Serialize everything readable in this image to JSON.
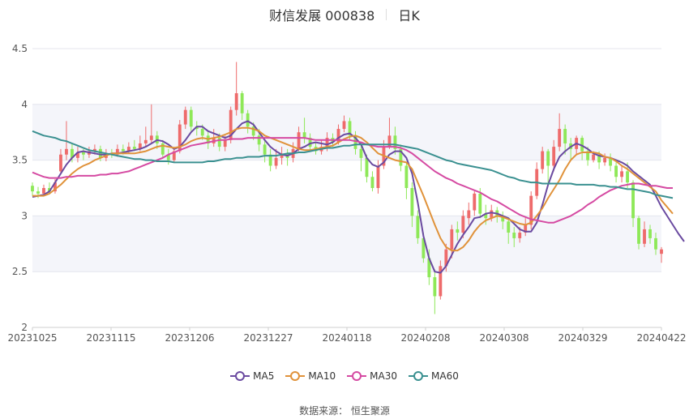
{
  "header": {
    "title": "财信发展 000838",
    "period": "日K"
  },
  "source": "数据来源：  恒生聚源",
  "legend": [
    {
      "name": "MA5",
      "color": "#6a4aa0"
    },
    {
      "name": "MA10",
      "color": "#e0923a"
    },
    {
      "name": "MA30",
      "color": "#d54aa2"
    },
    {
      "name": "MA60",
      "color": "#3a9090"
    }
  ],
  "colors": {
    "up": "#ee6b6b",
    "down": "#8ee858"
  },
  "chart_data": {
    "type": "candlestick",
    "ylim": [
      2,
      4.5
    ],
    "yticks": [
      "2",
      "2.5",
      "3",
      "3.5",
      "4",
      "4.5"
    ],
    "xtick_labels": [
      "20231025",
      "20231115",
      "20231206",
      "20231227",
      "20240118",
      "20240208",
      "20240308",
      "20240329",
      "20240422"
    ],
    "candles": [
      [
        3.27,
        3.22,
        3.3,
        3.18
      ],
      [
        3.22,
        3.2,
        3.26,
        3.16
      ],
      [
        3.2,
        3.25,
        3.28,
        3.18
      ],
      [
        3.25,
        3.22,
        3.3,
        3.2
      ],
      [
        3.22,
        3.3,
        3.33,
        3.2
      ],
      [
        3.4,
        3.55,
        3.6,
        3.38
      ],
      [
        3.55,
        3.6,
        3.85,
        3.5
      ],
      [
        3.6,
        3.52,
        3.65,
        3.48
      ],
      [
        3.52,
        3.57,
        3.62,
        3.48
      ],
      [
        3.57,
        3.55,
        3.6,
        3.5
      ],
      [
        3.55,
        3.58,
        3.62,
        3.52
      ],
      [
        3.58,
        3.6,
        3.64,
        3.55
      ],
      [
        3.6,
        3.52,
        3.63,
        3.49
      ],
      [
        3.52,
        3.56,
        3.6,
        3.49
      ],
      [
        3.56,
        3.55,
        3.6,
        3.52
      ],
      [
        3.55,
        3.6,
        3.64,
        3.53
      ],
      [
        3.6,
        3.58,
        3.64,
        3.55
      ],
      [
        3.58,
        3.62,
        3.66,
        3.56
      ],
      [
        3.62,
        3.6,
        3.68,
        3.58
      ],
      [
        3.6,
        3.65,
        3.72,
        3.58
      ],
      [
        3.65,
        3.68,
        3.8,
        3.62
      ],
      [
        3.68,
        3.72,
        4.0,
        3.65
      ],
      [
        3.72,
        3.65,
        3.76,
        3.6
      ],
      [
        3.65,
        3.55,
        3.68,
        3.52
      ],
      [
        3.55,
        3.5,
        3.6,
        3.46
      ],
      [
        3.5,
        3.58,
        3.62,
        3.48
      ],
      [
        3.58,
        3.82,
        3.86,
        3.56
      ],
      [
        3.82,
        3.95,
        3.98,
        3.78
      ],
      [
        3.95,
        3.8,
        3.98,
        3.76
      ],
      [
        3.8,
        3.78,
        3.85,
        3.72
      ],
      [
        3.78,
        3.72,
        3.82,
        3.68
      ],
      [
        3.72,
        3.65,
        3.76,
        3.6
      ],
      [
        3.65,
        3.7,
        3.78,
        3.62
      ],
      [
        3.7,
        3.62,
        3.74,
        3.58
      ],
      [
        3.62,
        3.68,
        3.72,
        3.58
      ],
      [
        3.68,
        3.95,
        3.98,
        3.65
      ],
      [
        3.95,
        4.1,
        4.38,
        3.9
      ],
      [
        4.1,
        3.92,
        4.12,
        3.86
      ],
      [
        3.92,
        3.8,
        3.95,
        3.74
      ],
      [
        3.8,
        3.72,
        3.84,
        3.68
      ],
      [
        3.72,
        3.64,
        3.78,
        3.58
      ],
      [
        3.64,
        3.55,
        3.68,
        3.48
      ],
      [
        3.55,
        3.45,
        3.6,
        3.4
      ],
      [
        3.45,
        3.52,
        3.6,
        3.42
      ],
      [
        3.52,
        3.56,
        3.62,
        3.46
      ],
      [
        3.56,
        3.52,
        3.6,
        3.45
      ],
      [
        3.52,
        3.6,
        3.66,
        3.48
      ],
      [
        3.6,
        3.75,
        3.8,
        3.58
      ],
      [
        3.75,
        3.7,
        3.88,
        3.65
      ],
      [
        3.7,
        3.62,
        3.74,
        3.58
      ],
      [
        3.62,
        3.58,
        3.66,
        3.55
      ],
      [
        3.58,
        3.62,
        3.68,
        3.55
      ],
      [
        3.62,
        3.7,
        3.75,
        3.58
      ],
      [
        3.7,
        3.66,
        3.74,
        3.62
      ],
      [
        3.66,
        3.78,
        3.82,
        3.64
      ],
      [
        3.78,
        3.85,
        3.9,
        3.75
      ],
      [
        3.85,
        3.72,
        3.88,
        3.68
      ],
      [
        3.72,
        3.6,
        3.76,
        3.55
      ],
      [
        3.6,
        3.52,
        3.64,
        3.4
      ],
      [
        3.52,
        3.35,
        3.55,
        3.3
      ],
      [
        3.35,
        3.25,
        3.4,
        3.22
      ],
      [
        3.25,
        3.45,
        3.5,
        3.2
      ],
      [
        3.45,
        3.62,
        3.68,
        3.42
      ],
      [
        3.62,
        3.72,
        3.88,
        3.6
      ],
      [
        3.72,
        3.6,
        3.8,
        3.55
      ],
      [
        3.6,
        3.45,
        3.64,
        3.4
      ],
      [
        3.45,
        3.25,
        3.48,
        3.15
      ],
      [
        3.25,
        3.0,
        3.3,
        2.9
      ],
      [
        3.0,
        2.8,
        3.05,
        2.75
      ],
      [
        2.8,
        2.62,
        2.85,
        2.58
      ],
      [
        2.62,
        2.45,
        2.7,
        2.38
      ],
      [
        2.45,
        2.28,
        2.52,
        2.12
      ],
      [
        2.28,
        2.55,
        2.6,
        2.25
      ],
      [
        2.55,
        2.7,
        2.75,
        2.5
      ],
      [
        2.7,
        2.88,
        2.92,
        2.62
      ],
      [
        2.88,
        2.85,
        2.95,
        2.78
      ],
      [
        2.85,
        3.0,
        3.05,
        2.8
      ],
      [
        2.98,
        3.05,
        3.12,
        2.92
      ],
      [
        3.05,
        3.2,
        3.22,
        3.0
      ],
      [
        3.2,
        3.02,
        3.25,
        2.98
      ],
      [
        3.02,
        2.98,
        3.1,
        2.92
      ],
      [
        2.98,
        3.05,
        3.1,
        2.95
      ],
      [
        3.05,
        3.0,
        3.08,
        2.94
      ],
      [
        3.0,
        2.95,
        3.04,
        2.88
      ],
      [
        2.95,
        2.85,
        2.98,
        2.75
      ],
      [
        2.85,
        2.8,
        2.9,
        2.72
      ],
      [
        2.8,
        2.85,
        2.9,
        2.76
      ],
      [
        2.85,
        2.92,
        2.98,
        2.82
      ],
      [
        2.92,
        3.18,
        3.22,
        2.88
      ],
      [
        3.18,
        3.42,
        3.48,
        3.15
      ],
      [
        3.42,
        3.58,
        3.62,
        3.38
      ],
      [
        3.58,
        3.45,
        3.6,
        3.3
      ],
      [
        3.45,
        3.62,
        3.68,
        3.4
      ],
      [
        3.62,
        3.78,
        3.92,
        3.58
      ],
      [
        3.78,
        3.65,
        3.82,
        3.55
      ],
      [
        3.65,
        3.6,
        3.7,
        3.5
      ],
      [
        3.6,
        3.7,
        3.72,
        3.55
      ],
      [
        3.7,
        3.58,
        3.72,
        3.5
      ],
      [
        3.58,
        3.5,
        3.62,
        3.45
      ],
      [
        3.5,
        3.55,
        3.58,
        3.48
      ],
      [
        3.55,
        3.48,
        3.58,
        3.42
      ],
      [
        3.48,
        3.52,
        3.56,
        3.45
      ],
      [
        3.52,
        3.45,
        3.56,
        3.4
      ],
      [
        3.45,
        3.35,
        3.48,
        3.3
      ],
      [
        3.35,
        3.4,
        3.45,
        3.3
      ],
      [
        3.4,
        3.3,
        3.48,
        3.25
      ],
      [
        3.3,
        2.98,
        3.32,
        2.9
      ],
      [
        2.98,
        2.75,
        3.0,
        2.7
      ],
      [
        2.75,
        2.88,
        2.95,
        2.72
      ],
      [
        2.88,
        2.8,
        2.92,
        2.75
      ],
      [
        2.8,
        2.7,
        2.85,
        2.65
      ],
      [
        2.66,
        2.7,
        2.72,
        2.58
      ]
    ],
    "series": [
      {
        "name": "MA5",
        "values": [
          3.17,
          3.18,
          3.19,
          3.22,
          3.3,
          3.38,
          3.46,
          3.52,
          3.57,
          3.58,
          3.57,
          3.56,
          3.55,
          3.55,
          3.56,
          3.56,
          3.57,
          3.58,
          3.59,
          3.6,
          3.62,
          3.65,
          3.68,
          3.67,
          3.64,
          3.6,
          3.62,
          3.68,
          3.75,
          3.8,
          3.8,
          3.76,
          3.74,
          3.72,
          3.7,
          3.72,
          3.78,
          3.83,
          3.85,
          3.82,
          3.75,
          3.68,
          3.62,
          3.58,
          3.55,
          3.54,
          3.56,
          3.6,
          3.62,
          3.65,
          3.66,
          3.65,
          3.64,
          3.66,
          3.7,
          3.73,
          3.74,
          3.7,
          3.64,
          3.52,
          3.46,
          3.44,
          3.48,
          3.55,
          3.58,
          3.58,
          3.52,
          3.38,
          3.12,
          2.82,
          2.62,
          2.5,
          2.49,
          2.55,
          2.65,
          2.75,
          2.83,
          2.9,
          2.98,
          2.99,
          3.02,
          3.03,
          3.02,
          3.0,
          2.98,
          2.93,
          2.88,
          2.86,
          2.86,
          2.94,
          3.1,
          3.28,
          3.42,
          3.53,
          3.58,
          3.62,
          3.65,
          3.63,
          3.6,
          3.56,
          3.54,
          3.53,
          3.52,
          3.5,
          3.48,
          3.45,
          3.4,
          3.36,
          3.32,
          3.28,
          3.18,
          3.08,
          3.0,
          2.92,
          2.84,
          2.77
        ]
      },
      {
        "name": "MA10",
        "values": [
          3.18,
          3.18,
          3.18,
          3.2,
          3.24,
          3.28,
          3.33,
          3.38,
          3.42,
          3.45,
          3.47,
          3.5,
          3.52,
          3.54,
          3.56,
          3.56,
          3.56,
          3.56,
          3.56,
          3.57,
          3.58,
          3.6,
          3.62,
          3.63,
          3.62,
          3.61,
          3.62,
          3.64,
          3.67,
          3.69,
          3.7,
          3.69,
          3.7,
          3.71,
          3.73,
          3.75,
          3.78,
          3.79,
          3.79,
          3.78,
          3.76,
          3.72,
          3.7,
          3.68,
          3.66,
          3.64,
          3.62,
          3.6,
          3.59,
          3.59,
          3.6,
          3.61,
          3.62,
          3.63,
          3.66,
          3.69,
          3.71,
          3.72,
          3.7,
          3.66,
          3.61,
          3.56,
          3.54,
          3.52,
          3.5,
          3.49,
          3.48,
          3.42,
          3.3,
          3.18,
          3.05,
          2.92,
          2.8,
          2.72,
          2.69,
          2.69,
          2.72,
          2.78,
          2.86,
          2.92,
          2.96,
          2.98,
          3.0,
          2.99,
          2.97,
          2.95,
          2.93,
          2.92,
          2.94,
          3.0,
          3.07,
          3.16,
          3.24,
          3.32,
          3.42,
          3.5,
          3.55,
          3.57,
          3.57,
          3.57,
          3.56,
          3.53,
          3.52,
          3.49,
          3.45,
          3.42,
          3.38,
          3.34,
          3.3,
          3.26,
          3.22,
          3.14,
          3.08,
          3.02
        ]
      },
      {
        "name": "MA30",
        "values": [
          3.39,
          3.37,
          3.35,
          3.34,
          3.34,
          3.34,
          3.35,
          3.35,
          3.36,
          3.36,
          3.36,
          3.36,
          3.37,
          3.37,
          3.38,
          3.38,
          3.39,
          3.4,
          3.42,
          3.44,
          3.46,
          3.48,
          3.5,
          3.52,
          3.55,
          3.57,
          3.59,
          3.61,
          3.63,
          3.64,
          3.65,
          3.66,
          3.67,
          3.68,
          3.68,
          3.69,
          3.69,
          3.69,
          3.7,
          3.7,
          3.7,
          3.7,
          3.7,
          3.7,
          3.7,
          3.7,
          3.7,
          3.7,
          3.7,
          3.69,
          3.68,
          3.68,
          3.68,
          3.68,
          3.68,
          3.68,
          3.68,
          3.67,
          3.66,
          3.64,
          3.63,
          3.62,
          3.62,
          3.62,
          3.62,
          3.61,
          3.59,
          3.56,
          3.52,
          3.48,
          3.44,
          3.4,
          3.37,
          3.34,
          3.32,
          3.29,
          3.27,
          3.25,
          3.23,
          3.21,
          3.18,
          3.15,
          3.13,
          3.1,
          3.07,
          3.04,
          3.01,
          2.99,
          2.97,
          2.96,
          2.95,
          2.94,
          2.94,
          2.96,
          2.98,
          3.0,
          3.03,
          3.06,
          3.1,
          3.13,
          3.17,
          3.2,
          3.23,
          3.25,
          3.27,
          3.28,
          3.29,
          3.29,
          3.28,
          3.27,
          3.27,
          3.26,
          3.25,
          3.25
        ]
      },
      {
        "name": "MA60",
        "values": [
          3.76,
          3.74,
          3.72,
          3.71,
          3.7,
          3.68,
          3.67,
          3.65,
          3.63,
          3.61,
          3.59,
          3.58,
          3.57,
          3.56,
          3.55,
          3.54,
          3.53,
          3.52,
          3.51,
          3.51,
          3.5,
          3.5,
          3.49,
          3.49,
          3.49,
          3.48,
          3.48,
          3.48,
          3.48,
          3.48,
          3.48,
          3.49,
          3.49,
          3.5,
          3.51,
          3.51,
          3.52,
          3.52,
          3.53,
          3.53,
          3.53,
          3.54,
          3.54,
          3.54,
          3.55,
          3.56,
          3.56,
          3.57,
          3.57,
          3.58,
          3.59,
          3.6,
          3.61,
          3.61,
          3.62,
          3.63,
          3.63,
          3.64,
          3.64,
          3.64,
          3.64,
          3.64,
          3.64,
          3.64,
          3.64,
          3.63,
          3.62,
          3.61,
          3.6,
          3.58,
          3.56,
          3.54,
          3.52,
          3.5,
          3.49,
          3.47,
          3.46,
          3.45,
          3.44,
          3.43,
          3.42,
          3.41,
          3.39,
          3.37,
          3.35,
          3.34,
          3.32,
          3.31,
          3.3,
          3.3,
          3.29,
          3.29,
          3.29,
          3.29,
          3.29,
          3.29,
          3.28,
          3.28,
          3.28,
          3.28,
          3.27,
          3.27,
          3.26,
          3.26,
          3.25,
          3.24,
          3.24,
          3.23,
          3.22,
          3.21,
          3.19,
          3.18,
          3.17,
          3.16
        ]
      }
    ]
  }
}
